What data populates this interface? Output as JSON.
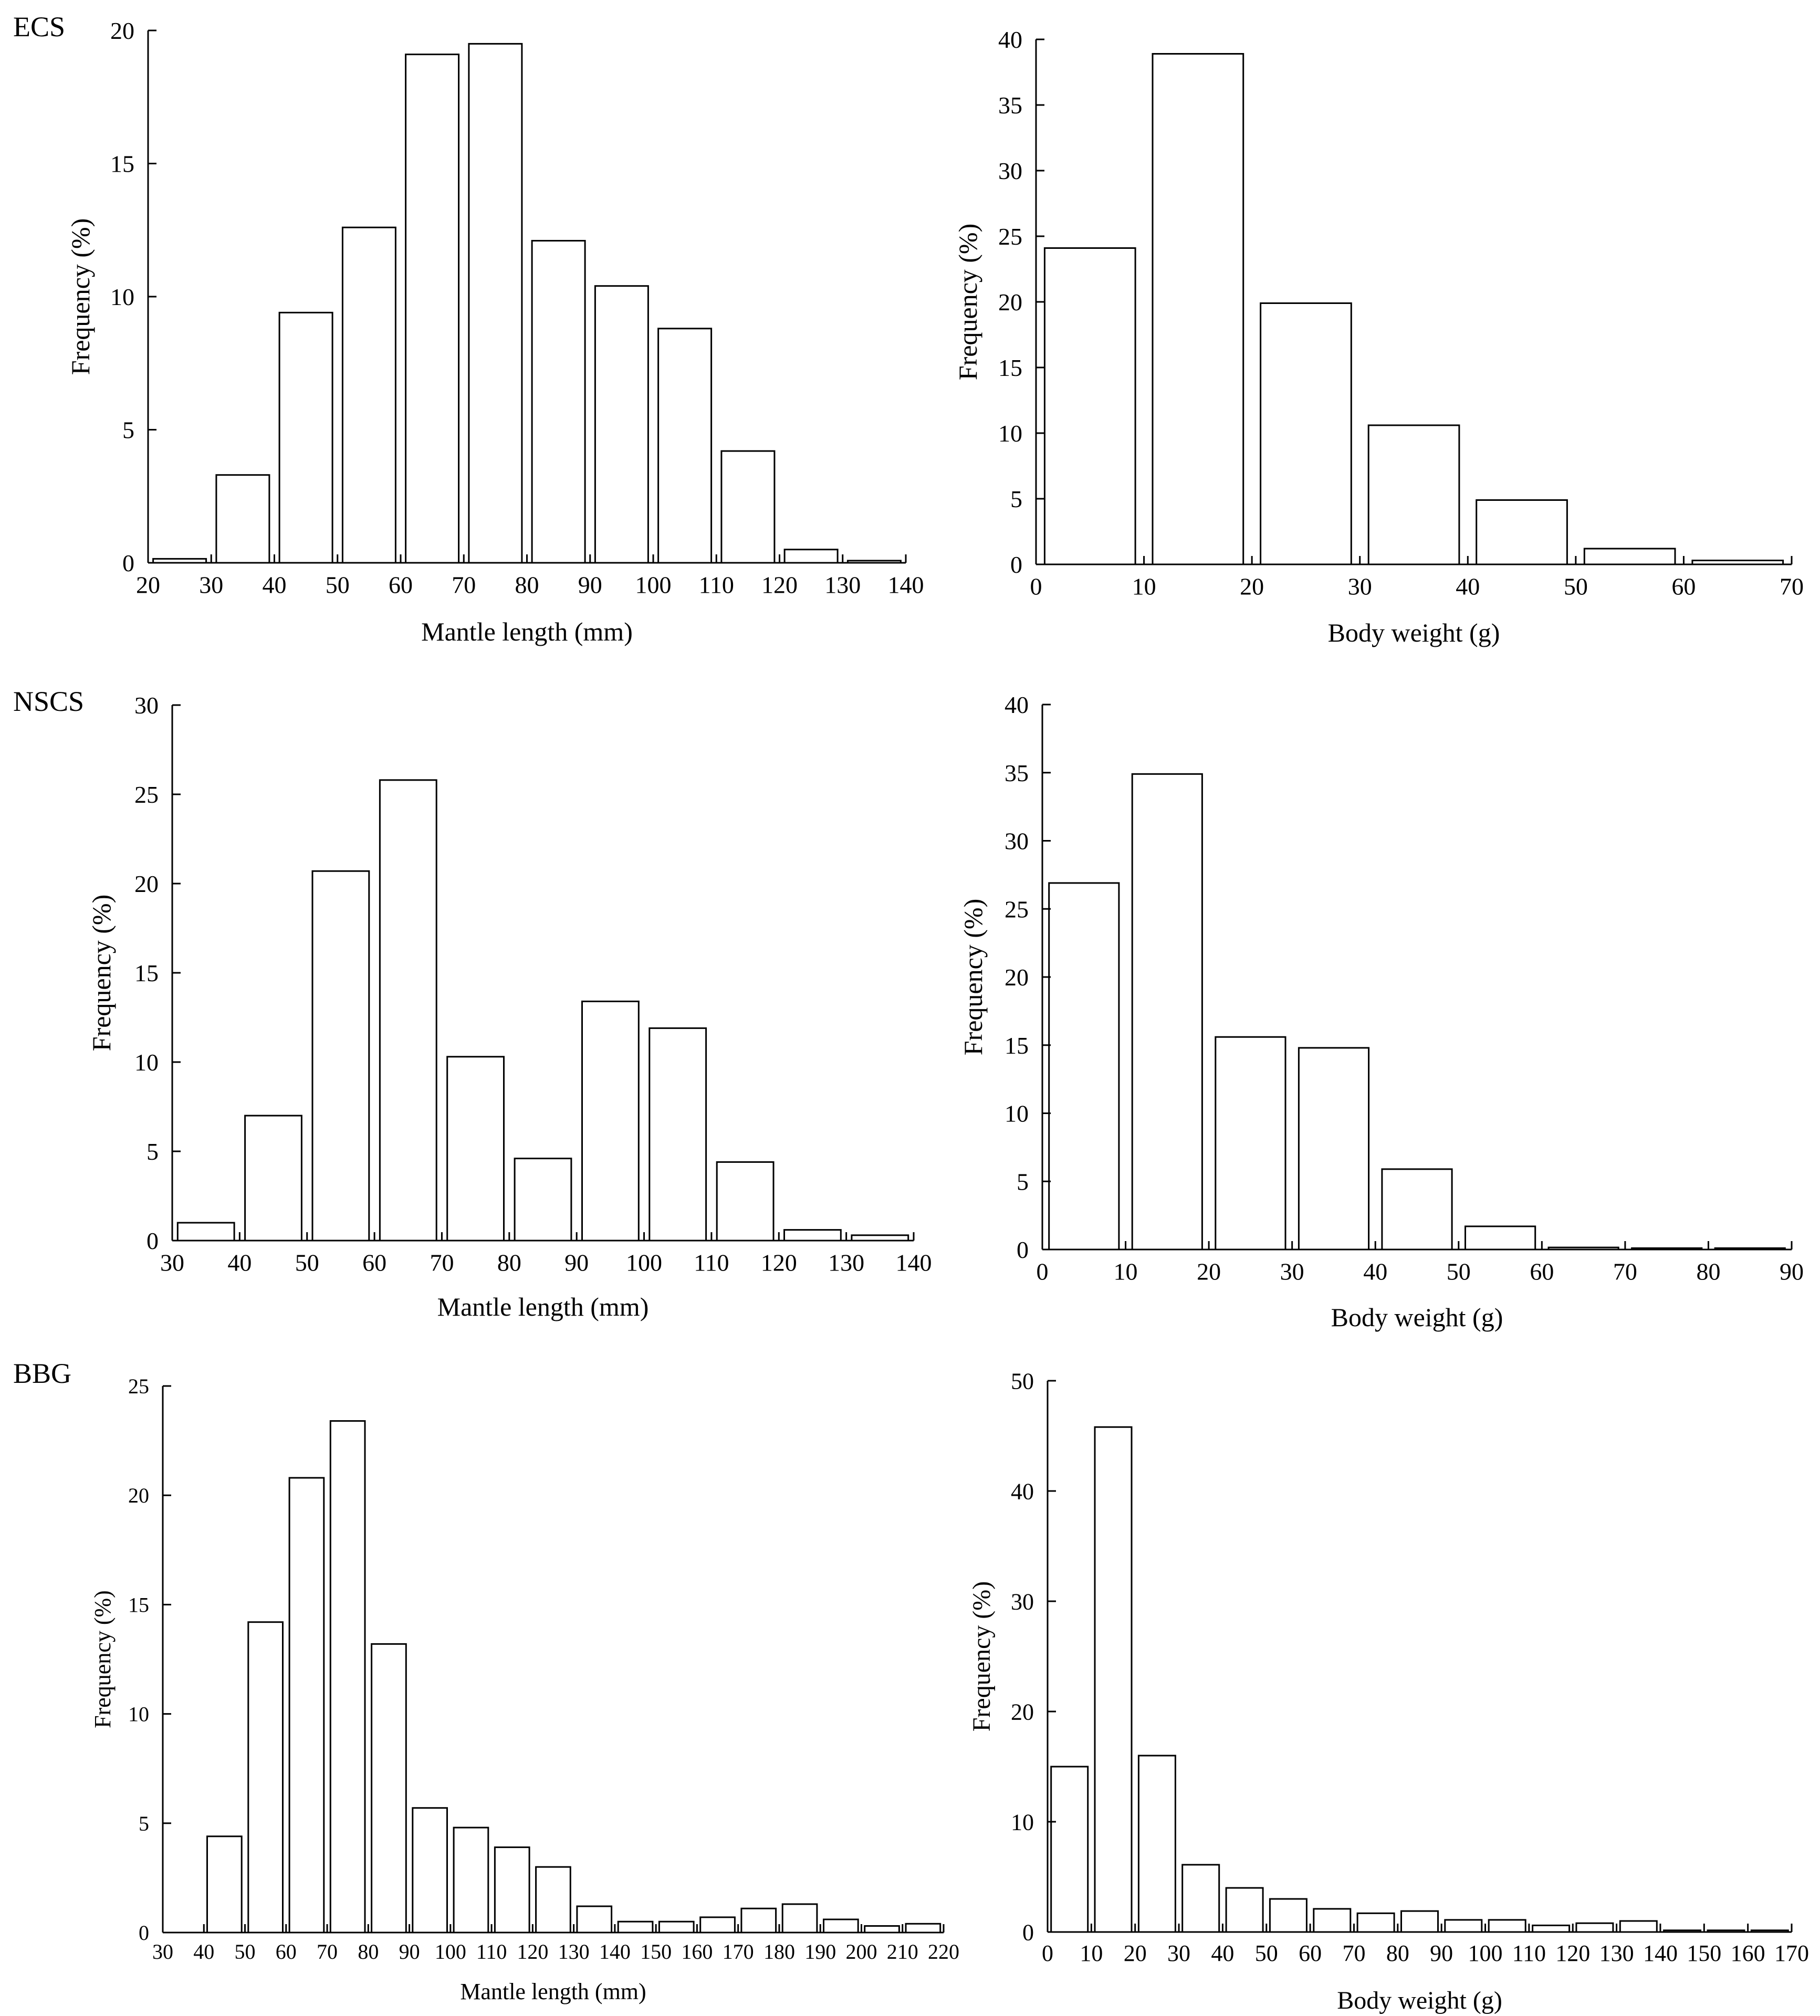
{
  "figure": {
    "region_labels": [
      "ECS",
      "NSCS",
      "BBG"
    ]
  },
  "colors": {
    "bar_fill": "#ffffff",
    "bar_stroke": "#000000",
    "axis": "#000000"
  },
  "chart_data": [
    {
      "type": "bar",
      "panel": "ECS mantle length",
      "title": "",
      "xlabel": "Mantle length (mm)",
      "ylabel": "Frequency (%)",
      "xlim": [
        20,
        140
      ],
      "ylim": [
        0,
        20
      ],
      "xticks": [
        20,
        30,
        40,
        50,
        60,
        70,
        80,
        90,
        100,
        110,
        120,
        130,
        140
      ],
      "yticks": [
        0,
        5,
        10,
        15,
        20
      ],
      "bin_width": 10,
      "bins": [
        20,
        30,
        40,
        50,
        60,
        70,
        80,
        90,
        100,
        110,
        120,
        130
      ],
      "values": [
        0.15,
        3.3,
        9.4,
        12.6,
        19.1,
        19.5,
        12.1,
        10.4,
        8.8,
        4.2,
        0.5,
        0.08
      ]
    },
    {
      "type": "bar",
      "panel": "ECS body weight",
      "title": "",
      "xlabel": "Body weight (g)",
      "ylabel": "Frequency (%)",
      "xlim": [
        0,
        70
      ],
      "ylim": [
        0,
        40
      ],
      "xticks": [
        0,
        10,
        20,
        30,
        40,
        50,
        60,
        70
      ],
      "yticks": [
        0,
        5,
        10,
        15,
        20,
        25,
        30,
        35,
        40
      ],
      "bin_width": 10,
      "bins": [
        0,
        10,
        20,
        30,
        40,
        50,
        60
      ],
      "values": [
        24.1,
        38.9,
        19.9,
        10.6,
        4.9,
        1.2,
        0.3
      ]
    },
    {
      "type": "bar",
      "panel": "NSCS mantle length",
      "title": "",
      "xlabel": "Mantle length (mm)",
      "ylabel": "Frequency (%)",
      "xlim": [
        30,
        140
      ],
      "ylim": [
        0,
        30
      ],
      "xticks": [
        30,
        40,
        50,
        60,
        70,
        80,
        90,
        100,
        110,
        120,
        130,
        140
      ],
      "yticks": [
        0,
        5,
        10,
        15,
        20,
        25,
        30
      ],
      "bin_width": 10,
      "bins": [
        30,
        40,
        50,
        60,
        70,
        80,
        90,
        100,
        110,
        120,
        130
      ],
      "values": [
        1.0,
        7.0,
        20.7,
        25.8,
        10.3,
        4.6,
        13.4,
        11.9,
        4.4,
        0.6,
        0.3
      ]
    },
    {
      "type": "bar",
      "panel": "NSCS body weight",
      "title": "",
      "xlabel": "Body weight (g)",
      "ylabel": "Frequency (%)",
      "xlim": [
        0,
        90
      ],
      "ylim": [
        0,
        40
      ],
      "xticks": [
        0,
        10,
        20,
        30,
        40,
        50,
        60,
        70,
        80,
        90
      ],
      "yticks": [
        0,
        5,
        10,
        15,
        20,
        25,
        30,
        35,
        40
      ],
      "bin_width": 10,
      "bins": [
        0,
        10,
        20,
        30,
        40,
        50,
        60,
        70,
        80
      ],
      "values": [
        26.9,
        34.9,
        15.6,
        14.8,
        5.9,
        1.7,
        0.15,
        0.1,
        0.1
      ]
    },
    {
      "type": "bar",
      "panel": "BBG mantle length",
      "title": "",
      "xlabel": "Mantle length (mm)",
      "ylabel": "Frequency (%)",
      "xlim": [
        30,
        220
      ],
      "ylim": [
        0,
        25
      ],
      "xticks": [
        30,
        40,
        50,
        60,
        70,
        80,
        90,
        100,
        110,
        120,
        130,
        140,
        150,
        160,
        170,
        180,
        190,
        200,
        210,
        220
      ],
      "yticks": [
        0,
        5,
        10,
        15,
        20,
        25
      ],
      "bin_width": 10,
      "bins": [
        40,
        50,
        60,
        70,
        80,
        90,
        100,
        110,
        120,
        130,
        140,
        150,
        160,
        170,
        180,
        190,
        200,
        210
      ],
      "values": [
        4.4,
        14.2,
        20.8,
        23.4,
        13.2,
        5.7,
        4.8,
        3.9,
        3.0,
        1.2,
        0.5,
        0.5,
        0.7,
        1.1,
        1.3,
        0.6,
        0.3,
        0.4
      ]
    },
    {
      "type": "bar",
      "panel": "BBG body weight",
      "title": "",
      "xlabel": "Body weight (g)",
      "ylabel": "Frequency (%)",
      "xlim": [
        0,
        170
      ],
      "ylim": [
        0,
        50
      ],
      "xticks": [
        0,
        10,
        20,
        30,
        40,
        50,
        60,
        70,
        80,
        90,
        100,
        110,
        120,
        130,
        140,
        150,
        160,
        170
      ],
      "yticks": [
        0,
        10,
        20,
        30,
        40,
        50
      ],
      "bin_width": 10,
      "bins": [
        0,
        10,
        20,
        30,
        40,
        50,
        60,
        70,
        80,
        90,
        100,
        110,
        120,
        130,
        140,
        150,
        160
      ],
      "values": [
        15.0,
        45.8,
        16.0,
        6.1,
        4.0,
        3.0,
        2.1,
        1.7,
        1.9,
        1.1,
        1.1,
        0.6,
        0.8,
        1.0,
        0.15,
        0.15,
        0.15
      ]
    }
  ]
}
